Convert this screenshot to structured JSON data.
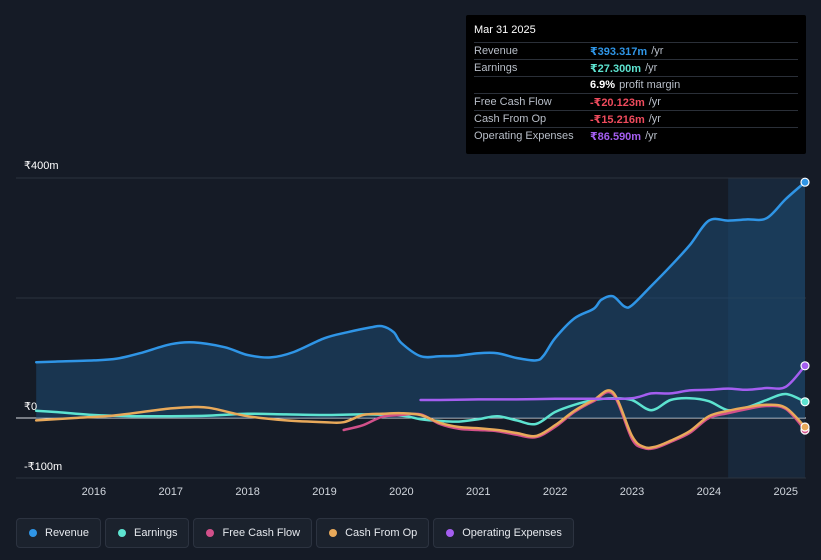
{
  "tooltip": {
    "date": "Mar 31 2025",
    "rows": [
      {
        "label": "Revenue",
        "value": "₹393.317m",
        "unit": "/yr",
        "color": "#2f95e6"
      },
      {
        "label": "Earnings",
        "value": "₹27.300m",
        "unit": "/yr",
        "color": "#5de3d0"
      },
      {
        "label": "",
        "value": "6.9%",
        "unit": "profit margin",
        "color": "#ffffff"
      },
      {
        "label": "Free Cash Flow",
        "value": "-₹20.123m",
        "unit": "/yr",
        "color": "#ef4b5d"
      },
      {
        "label": "Cash From Op",
        "value": "-₹15.216m",
        "unit": "/yr",
        "color": "#ef4b5d"
      },
      {
        "label": "Operating Expenses",
        "value": "₹86.590m",
        "unit": "/yr",
        "color": "#a45ef0"
      }
    ]
  },
  "legend": [
    {
      "label": "Revenue",
      "color": "#2f95e6"
    },
    {
      "label": "Earnings",
      "color": "#5de3d0"
    },
    {
      "label": "Free Cash Flow",
      "color": "#d2508a"
    },
    {
      "label": "Cash From Op",
      "color": "#e8a95a"
    },
    {
      "label": "Operating Expenses",
      "color": "#a45ef0"
    }
  ],
  "chart_data": {
    "type": "line",
    "title": "",
    "xlabel": "",
    "ylabel": "",
    "ylim": [
      -100,
      400
    ],
    "y_tick_labels": [
      "₹400m",
      "₹0",
      "-₹100m"
    ],
    "y_tick_values": [
      400,
      0,
      -100
    ],
    "x_tick_labels": [
      "2016",
      "2017",
      "2018",
      "2019",
      "2020",
      "2021",
      "2022",
      "2023",
      "2024",
      "2025"
    ],
    "x_tick_values": [
      2016,
      2017,
      2018,
      2019,
      2020,
      2021,
      2022,
      2023,
      2024,
      2025
    ],
    "xlim": [
      2015.0,
      2025.25
    ],
    "highlight_start": 2024.25,
    "series": [
      {
        "name": "Revenue",
        "color": "#2f95e6",
        "fill": true,
        "x": [
          2015.25,
          2015.5,
          2016.0,
          2016.3,
          2016.6,
          2017.0,
          2017.3,
          2017.7,
          2018.0,
          2018.3,
          2018.6,
          2019.0,
          2019.3,
          2019.6,
          2019.75,
          2019.9,
          2020.0,
          2020.25,
          2020.5,
          2020.75,
          2021.0,
          2021.25,
          2021.5,
          2021.75,
          2021.85,
          2022.0,
          2022.25,
          2022.5,
          2022.6,
          2022.75,
          2022.9,
          2023.0,
          2023.25,
          2023.5,
          2023.75,
          2024.0,
          2024.25,
          2024.5,
          2024.75,
          2025.0,
          2025.25
        ],
        "values": [
          93,
          94,
          96,
          99,
          108,
          123,
          126,
          118,
          105,
          101,
          110,
          133,
          143,
          151,
          153,
          143,
          125,
          103,
          103,
          104,
          108,
          108,
          100,
          96,
          104,
          133,
          166,
          182,
          197,
          203,
          186,
          188,
          220,
          253,
          288,
          329,
          329,
          331,
          333,
          365,
          393
        ]
      },
      {
        "name": "Earnings",
        "color": "#5de3d0",
        "fill": false,
        "x": [
          2015.25,
          2015.5,
          2016.0,
          2016.5,
          2017.0,
          2017.5,
          2018.0,
          2018.5,
          2019.0,
          2019.5,
          2020.0,
          2020.25,
          2020.5,
          2020.75,
          2021.0,
          2021.25,
          2021.5,
          2021.75,
          2022.0,
          2022.25,
          2022.5,
          2022.75,
          2023.0,
          2023.25,
          2023.5,
          2023.75,
          2024.0,
          2024.25,
          2024.5,
          2024.75,
          2025.0,
          2025.25
        ],
        "values": [
          12,
          10,
          5,
          3,
          3,
          4,
          7,
          6,
          5,
          6,
          4,
          -2,
          -5,
          -6,
          -2,
          3,
          -4,
          -10,
          10,
          22,
          30,
          33,
          30,
          13,
          30,
          33,
          28,
          13,
          18,
          30,
          40,
          27
        ]
      },
      {
        "name": "Free Cash Flow",
        "color": "#d2508a",
        "fill": false,
        "x": [
          2019.25,
          2019.5,
          2019.75,
          2020.0,
          2020.25,
          2020.5,
          2020.75,
          2021.0,
          2021.25,
          2021.5,
          2021.75,
          2022.0,
          2022.25,
          2022.5,
          2022.75,
          2023.0,
          2023.15,
          2023.3,
          2023.5,
          2023.75,
          2024.0,
          2024.25,
          2024.5,
          2024.75,
          2025.0,
          2025.25
        ],
        "values": [
          -20,
          -12,
          2,
          5,
          6,
          -10,
          -18,
          -20,
          -22,
          -28,
          -32,
          -15,
          10,
          28,
          40,
          -35,
          -50,
          -50,
          -40,
          -25,
          0,
          8,
          15,
          20,
          15,
          -20
        ]
      },
      {
        "name": "Cash From Op",
        "color": "#e8a95a",
        "fill": false,
        "x": [
          2015.25,
          2015.75,
          2016.25,
          2016.75,
          2017.0,
          2017.25,
          2017.5,
          2018.0,
          2018.5,
          2019.0,
          2019.25,
          2019.5,
          2019.75,
          2020.0,
          2020.25,
          2020.5,
          2020.75,
          2021.0,
          2021.25,
          2021.5,
          2021.75,
          2022.0,
          2022.25,
          2022.5,
          2022.75,
          2023.0,
          2023.15,
          2023.3,
          2023.5,
          2023.75,
          2024.0,
          2024.25,
          2024.5,
          2024.75,
          2025.0,
          2025.25
        ],
        "values": [
          -4,
          0,
          4,
          12,
          16,
          18,
          17,
          3,
          -4,
          -7,
          -7,
          5,
          7,
          8,
          5,
          -8,
          -15,
          -17,
          -20,
          -25,
          -30,
          -12,
          12,
          30,
          43,
          -30,
          -48,
          -48,
          -38,
          -22,
          3,
          12,
          18,
          22,
          17,
          -15
        ]
      },
      {
        "name": "Operating Expenses",
        "color": "#a45ef0",
        "fill": false,
        "x": [
          2020.25,
          2020.5,
          2021.0,
          2021.5,
          2022.0,
          2022.5,
          2023.0,
          2023.25,
          2023.5,
          2023.75,
          2024.0,
          2024.25,
          2024.5,
          2024.75,
          2025.0,
          2025.25
        ],
        "values": [
          30,
          30,
          31,
          31,
          32,
          32,
          33,
          41,
          41,
          46,
          47,
          49,
          47,
          50,
          52,
          87
        ]
      }
    ]
  }
}
